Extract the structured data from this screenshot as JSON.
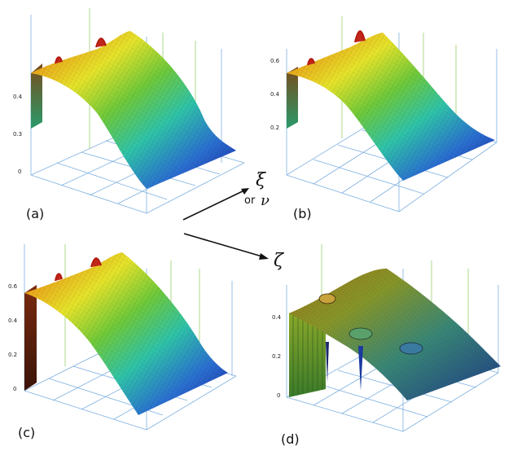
{
  "figure": {
    "panels": [
      {
        "label": "(a)",
        "ticks": [
          "0.4",
          "0.3",
          "0"
        ]
      },
      {
        "label": "(b)",
        "ticks": [
          "0.6",
          "0.4",
          "0.2"
        ]
      },
      {
        "label": "(c)",
        "ticks": [
          "0.6",
          "0.4",
          "0.2",
          "0"
        ]
      },
      {
        "label": "(d)",
        "ticks": [
          "0.4",
          "0.2",
          "0"
        ]
      }
    ],
    "axes": {
      "xi": "ξ",
      "or": "or",
      "nu": "ν",
      "zeta": "ζ"
    }
  }
}
